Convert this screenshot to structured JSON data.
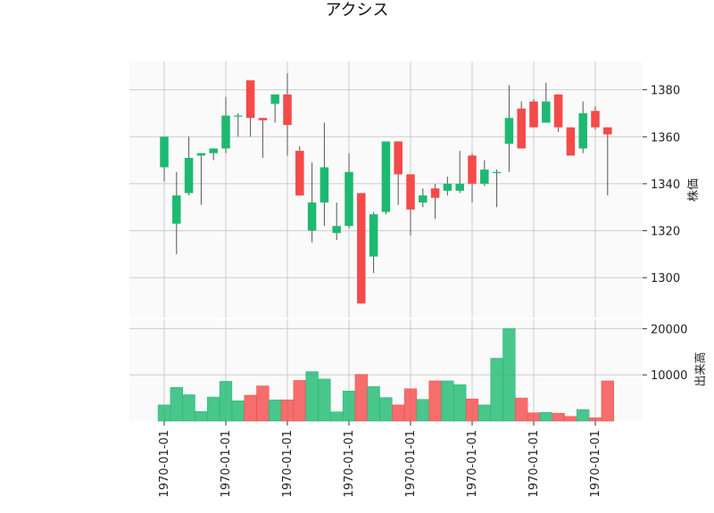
{
  "chart_data": {
    "type": "candlestick",
    "title": "アクシス",
    "colors": {
      "up": "#1db970",
      "down": "#f44a4a",
      "wick": "#555555",
      "grid": "#cccccc",
      "panel": "#fafafa"
    },
    "price_axis": {
      "label": "株価",
      "ylim": [
        1283,
        1392
      ],
      "ticks": [
        1300,
        1320,
        1340,
        1360,
        1380
      ]
    },
    "volume_axis": {
      "label": "出来高",
      "ylim": [
        0,
        22000
      ],
      "ticks": [
        10000,
        20000
      ],
      "tick_labels": [
        "10000",
        "20000"
      ]
    },
    "x_tick_labels": [
      "1970-01-01",
      "1970-01-01",
      "1970-01-01",
      "1970-01-01",
      "1970-01-01",
      "1970-01-01",
      "1970-01-01",
      "1970-01-01"
    ],
    "x_tick_indices": [
      0,
      5,
      10,
      15,
      20,
      25,
      30,
      35
    ],
    "candles": [
      {
        "open": 1347,
        "high": 1360,
        "low": 1341,
        "close": 1360,
        "volume": 3500
      },
      {
        "open": 1323,
        "high": 1345,
        "low": 1310,
        "close": 1335,
        "volume": 7300
      },
      {
        "open": 1336,
        "high": 1360,
        "low": 1335,
        "close": 1351,
        "volume": 5700
      },
      {
        "open": 1352,
        "high": 1353,
        "low": 1331,
        "close": 1353,
        "volume": 2100
      },
      {
        "open": 1353,
        "high": 1355,
        "low": 1350,
        "close": 1355,
        "volume": 5200
      },
      {
        "open": 1355,
        "high": 1377,
        "low": 1353,
        "close": 1369,
        "volume": 8600
      },
      {
        "open": 1369,
        "high": 1370,
        "low": 1360,
        "close": 1369,
        "volume": 4400
      },
      {
        "open": 1384,
        "high": 1384,
        "low": 1360,
        "close": 1368,
        "volume": 5600
      },
      {
        "open": 1368,
        "high": 1368,
        "low": 1351,
        "close": 1367,
        "volume": 7600
      },
      {
        "open": 1374,
        "high": 1378,
        "low": 1366,
        "close": 1378,
        "volume": 4600
      },
      {
        "open": 1378,
        "high": 1387,
        "low": 1352,
        "close": 1365,
        "volume": 4600
      },
      {
        "open": 1354,
        "high": 1356,
        "low": 1335,
        "close": 1335,
        "volume": 8800
      },
      {
        "open": 1320,
        "high": 1349,
        "low": 1315,
        "close": 1332,
        "volume": 10700
      },
      {
        "open": 1332,
        "high": 1366,
        "low": 1322,
        "close": 1347,
        "volume": 9100
      },
      {
        "open": 1319,
        "high": 1332,
        "low": 1316,
        "close": 1322,
        "volume": 2000
      },
      {
        "open": 1322,
        "high": 1353,
        "low": 1321,
        "close": 1345,
        "volume": 6500
      },
      {
        "open": 1336,
        "high": 1336,
        "low": 1289,
        "close": 1289,
        "volume": 10100
      },
      {
        "open": 1309,
        "high": 1328,
        "low": 1302,
        "close": 1327,
        "volume": 7500
      },
      {
        "open": 1328,
        "high": 1358,
        "low": 1327,
        "close": 1358,
        "volume": 5100
      },
      {
        "open": 1358,
        "high": 1358,
        "low": 1331,
        "close": 1344,
        "volume": 3500
      },
      {
        "open": 1344,
        "high": 1344,
        "low": 1318,
        "close": 1329,
        "volume": 7000
      },
      {
        "open": 1332,
        "high": 1338,
        "low": 1330,
        "close": 1335,
        "volume": 4700
      },
      {
        "open": 1338,
        "high": 1340,
        "low": 1325,
        "close": 1334,
        "volume": 8700
      },
      {
        "open": 1337,
        "high": 1343,
        "low": 1335,
        "close": 1340,
        "volume": 8700
      },
      {
        "open": 1337,
        "high": 1354,
        "low": 1336,
        "close": 1340,
        "volume": 7900
      },
      {
        "open": 1352,
        "high": 1353,
        "low": 1332,
        "close": 1340,
        "volume": 4800
      },
      {
        "open": 1340,
        "high": 1350,
        "low": 1339,
        "close": 1346,
        "volume": 3500
      },
      {
        "open": 1345,
        "high": 1346,
        "low": 1330,
        "close": 1345,
        "volume": 13600
      },
      {
        "open": 1357,
        "high": 1382,
        "low": 1345,
        "close": 1368,
        "volume": 20000
      },
      {
        "open": 1372,
        "high": 1375,
        "low": 1355,
        "close": 1355,
        "volume": 5000
      },
      {
        "open": 1375,
        "high": 1376,
        "low": 1364,
        "close": 1364,
        "volume": 1800
      },
      {
        "open": 1366,
        "high": 1383,
        "low": 1366,
        "close": 1375,
        "volume": 1900
      },
      {
        "open": 1378,
        "high": 1378,
        "low": 1362,
        "close": 1364,
        "volume": 1700
      },
      {
        "open": 1364,
        "high": 1364,
        "low": 1352,
        "close": 1352,
        "volume": 1000
      },
      {
        "open": 1355,
        "high": 1375,
        "low": 1353,
        "close": 1370,
        "volume": 2500
      },
      {
        "open": 1371,
        "high": 1373,
        "low": 1363,
        "close": 1364,
        "volume": 700
      },
      {
        "open": 1364,
        "high": 1364,
        "low": 1335,
        "close": 1361,
        "volume": 8700
      }
    ]
  }
}
